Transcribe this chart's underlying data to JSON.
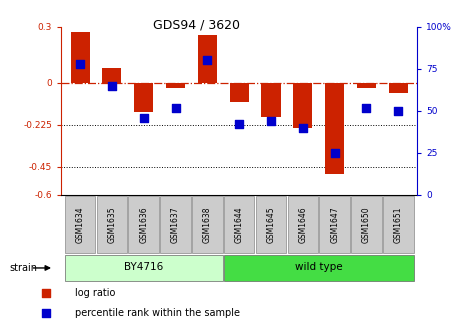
{
  "title": "GDS94 / 3620",
  "samples": [
    "GSM1634",
    "GSM1635",
    "GSM1636",
    "GSM1637",
    "GSM1638",
    "GSM1644",
    "GSM1645",
    "GSM1646",
    "GSM1647",
    "GSM1650",
    "GSM1651"
  ],
  "log_ratio": [
    0.27,
    0.08,
    -0.155,
    -0.025,
    0.255,
    -0.1,
    -0.185,
    -0.24,
    -0.49,
    -0.025,
    -0.055
  ],
  "percentile": [
    78,
    65,
    46,
    52,
    80,
    42,
    44,
    40,
    25,
    52,
    50
  ],
  "bar_color": "#cc2200",
  "dot_color": "#0000cc",
  "ylim_left": [
    -0.6,
    0.3
  ],
  "ylim_right": [
    0,
    100
  ],
  "yticks_left": [
    0.3,
    0,
    -0.225,
    -0.45,
    -0.6
  ],
  "yticks_right": [
    100,
    75,
    50,
    25,
    0
  ],
  "ytick_labels_left": [
    "0.3",
    "0",
    "-0.225",
    "-0.45",
    "-0.6"
  ],
  "ytick_labels_right": [
    "100%",
    "75",
    "50",
    "25",
    "0"
  ],
  "hline_y": 0,
  "dotted_lines": [
    -0.225,
    -0.45
  ],
  "strain_groups": [
    {
      "label": "BY4716",
      "start": 0,
      "end": 5,
      "color": "#ccffcc"
    },
    {
      "label": "wild type",
      "start": 5,
      "end": 11,
      "color": "#44dd44"
    }
  ],
  "legend_items": [
    {
      "label": "log ratio",
      "color": "#cc2200"
    },
    {
      "label": "percentile rank within the sample",
      "color": "#0000cc"
    }
  ],
  "strain_label": "strain",
  "bg_color": "#ffffff",
  "plot_bg": "#ffffff",
  "box_color": "#cccccc"
}
